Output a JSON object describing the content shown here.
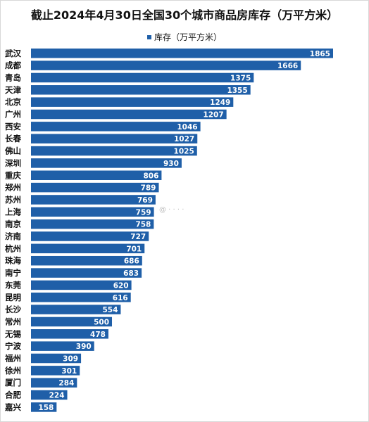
{
  "chart_data": {
    "type": "bar",
    "orientation": "horizontal",
    "title": "截止2024年4月30日全国30个城市商品房库存（万平方米）",
    "legend_position": "top-center",
    "series": [
      {
        "name": "库存（万平方米）",
        "color": "#1f5fa8",
        "values": [
          1865,
          1666,
          1375,
          1355,
          1249,
          1207,
          1046,
          1027,
          1025,
          930,
          806,
          789,
          769,
          759,
          758,
          727,
          701,
          686,
          683,
          620,
          616,
          554,
          500,
          478,
          390,
          309,
          301,
          284,
          224,
          158
        ]
      }
    ],
    "categories": [
      "武汉",
      "成都",
      "青岛",
      "天津",
      "北京",
      "广州",
      "西安",
      "长春",
      "佛山",
      "深圳",
      "重庆",
      "郑州",
      "苏州",
      "上海",
      "南京",
      "济南",
      "杭州",
      "珠海",
      "南宁",
      "东莞",
      "昆明",
      "长沙",
      "常州",
      "无锡",
      "宁波",
      "福州",
      "徐州",
      "厦门",
      "合肥",
      "嘉兴"
    ],
    "xlim": [
      0,
      1865
    ],
    "grid": false
  }
}
